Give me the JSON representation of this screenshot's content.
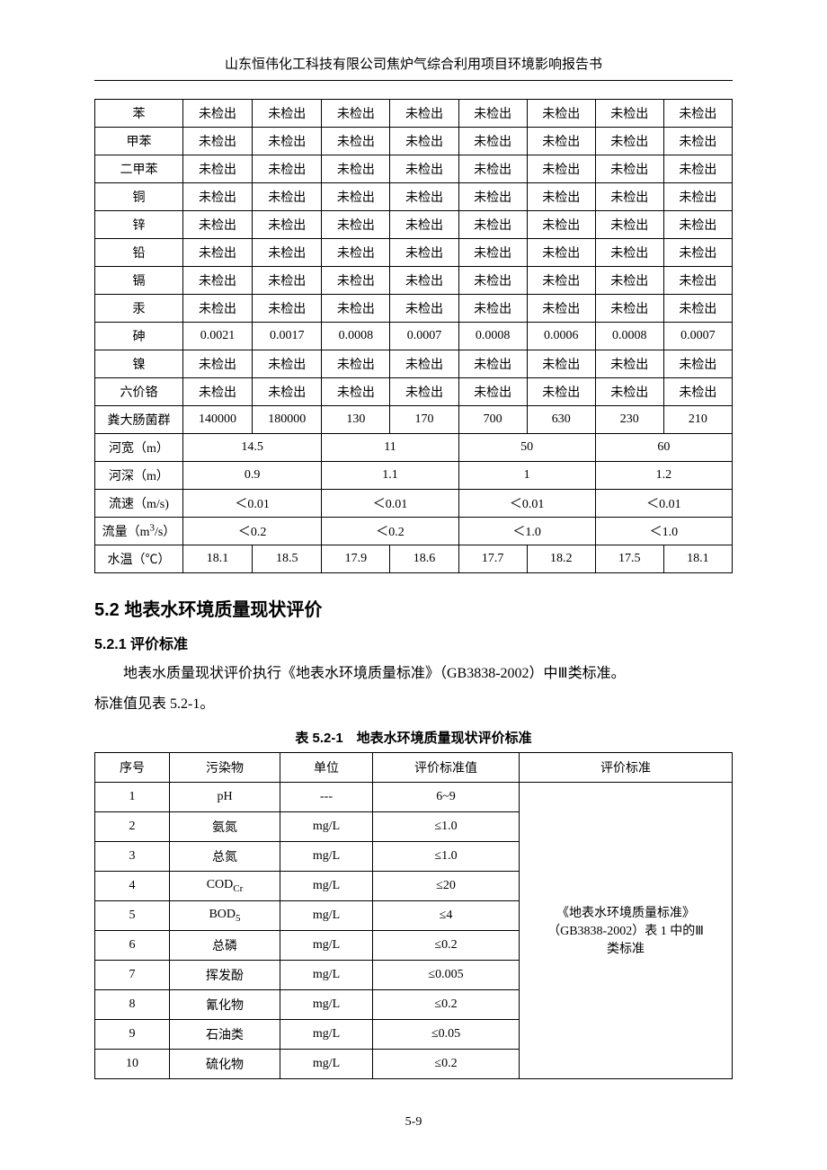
{
  "header": "山东恒伟化工科技有限公司焦炉气综合利用项目环境影响报告书",
  "table1": {
    "nd": "未检出",
    "rows_nd8": [
      "苯",
      "甲苯",
      "二甲苯",
      "铜",
      "锌",
      "铅",
      "镉",
      "汞"
    ],
    "row_arsenic": {
      "label": "砷",
      "vals": [
        "0.0021",
        "0.0017",
        "0.0008",
        "0.0007",
        "0.0008",
        "0.0006",
        "0.0008",
        "0.0007"
      ]
    },
    "rows_nd8b": [
      "镍",
      "六价铬"
    ],
    "row_coliform": {
      "label": "粪大肠菌群",
      "vals": [
        "140000",
        "180000",
        "130",
        "170",
        "700",
        "630",
        "230",
        "210"
      ]
    },
    "row_width": {
      "label": "河宽（m）",
      "vals": [
        "14.5",
        "11",
        "50",
        "60"
      ]
    },
    "row_depth": {
      "label": "河深（m）",
      "vals": [
        "0.9",
        "1.1",
        "1",
        "1.2"
      ]
    },
    "row_velocity": {
      "label": "流速（m/s)",
      "vals": [
        "＜0.01",
        "＜0.01",
        "＜0.01",
        "＜0.01"
      ]
    },
    "row_flow_label": "流量（m",
    "row_flow_label_sup": "3",
    "row_flow_label_tail": "/s）",
    "row_flow": {
      "vals": [
        "＜0.2",
        "＜0.2",
        "＜1.0",
        "＜1.0"
      ]
    },
    "row_temp": {
      "label": "水温（℃）",
      "vals": [
        "18.1",
        "18.5",
        "17.9",
        "18.6",
        "17.7",
        "18.2",
        "17.5",
        "18.1"
      ]
    }
  },
  "section_5_2": "5.2 地表水环境质量现状评价",
  "section_5_2_1": "5.2.1 评价标准",
  "para1": "地表水质量现状评价执行《地表水环境质量标准》（GB3838-2002）中Ⅲ类标准。",
  "para2": "标准值见表 5.2-1。",
  "table2_caption": "表 5.2-1 地表水环境质量现状评价标准",
  "table2": {
    "headers": [
      "序号",
      "污染物",
      "单位",
      "评价标准值",
      "评价标准"
    ],
    "mgL": "mg/L",
    "rows": [
      {
        "n": "1",
        "p": "pH",
        "u": "---",
        "v": "6~9"
      },
      {
        "n": "2",
        "p": "氨氮",
        "u": "mg/L",
        "v": "≤1.0"
      },
      {
        "n": "3",
        "p": "总氮",
        "u": "mg/L",
        "v": "≤1.0"
      },
      {
        "n": "4",
        "p_html": "COD<sub>Cr</sub>",
        "p": "CODCr",
        "u": "mg/L",
        "v": "≤20"
      },
      {
        "n": "5",
        "p_html": "BOD<sub>5</sub>",
        "p": "BOD5",
        "u": "mg/L",
        "v": "≤4"
      },
      {
        "n": "6",
        "p": "总磷",
        "u": "mg/L",
        "v": "≤0.2"
      },
      {
        "n": "7",
        "p": "挥发酚",
        "u": "mg/L",
        "v": "≤0.005"
      },
      {
        "n": "8",
        "p": "氰化物",
        "u": "mg/L",
        "v": "≤0.2"
      },
      {
        "n": "9",
        "p": "石油类",
        "u": "mg/L",
        "v": "≤0.05"
      },
      {
        "n": "10",
        "p": "硫化物",
        "u": "mg/L",
        "v": "≤0.2"
      }
    ],
    "standard_text_l1": "《地表水环境质量标准》",
    "standard_text_l2": "（GB3838-2002）表 1 中的Ⅲ",
    "standard_text_l3": "类标准"
  },
  "footer": "5-9"
}
